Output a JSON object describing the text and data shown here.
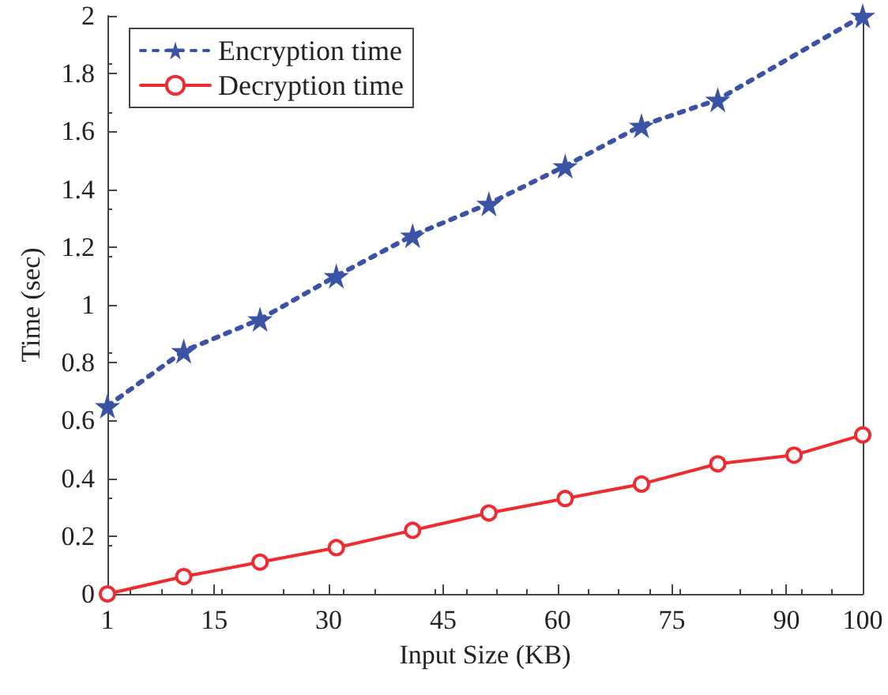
{
  "chart_data": {
    "type": "line",
    "xlabel": "Input Size (KB)",
    "ylabel": "Time (sec)",
    "xlim": [
      1,
      100
    ],
    "xticks": [
      1,
      15,
      30,
      45,
      60,
      75,
      90,
      100
    ],
    "ylim": [
      0,
      2
    ],
    "yticks": [
      0,
      0.2,
      0.4,
      0.6,
      0.8,
      1,
      1.2,
      1.4,
      1.6,
      1.8,
      2
    ],
    "grid": false,
    "legend": "top left",
    "series": [
      {
        "name": "Encryption time",
        "color": "#3a53a4",
        "marker": "star",
        "line_style": "dotted",
        "x": [
          1,
          11,
          21,
          31,
          41,
          51,
          61,
          71,
          81,
          100
        ],
        "values": [
          0.65,
          0.84,
          0.95,
          1.1,
          1.24,
          1.35,
          1.48,
          1.62,
          1.71,
          2.0
        ]
      },
      {
        "name": "Decryption time",
        "color": "#ee2b2f",
        "marker": "circle",
        "line_style": "solid",
        "x": [
          1,
          11,
          21,
          31,
          41,
          51,
          61,
          71,
          81,
          91,
          100
        ],
        "values": [
          0,
          0.06,
          0.11,
          0.16,
          0.22,
          0.28,
          0.33,
          0.38,
          0.45,
          0.48,
          0.55
        ]
      }
    ]
  }
}
